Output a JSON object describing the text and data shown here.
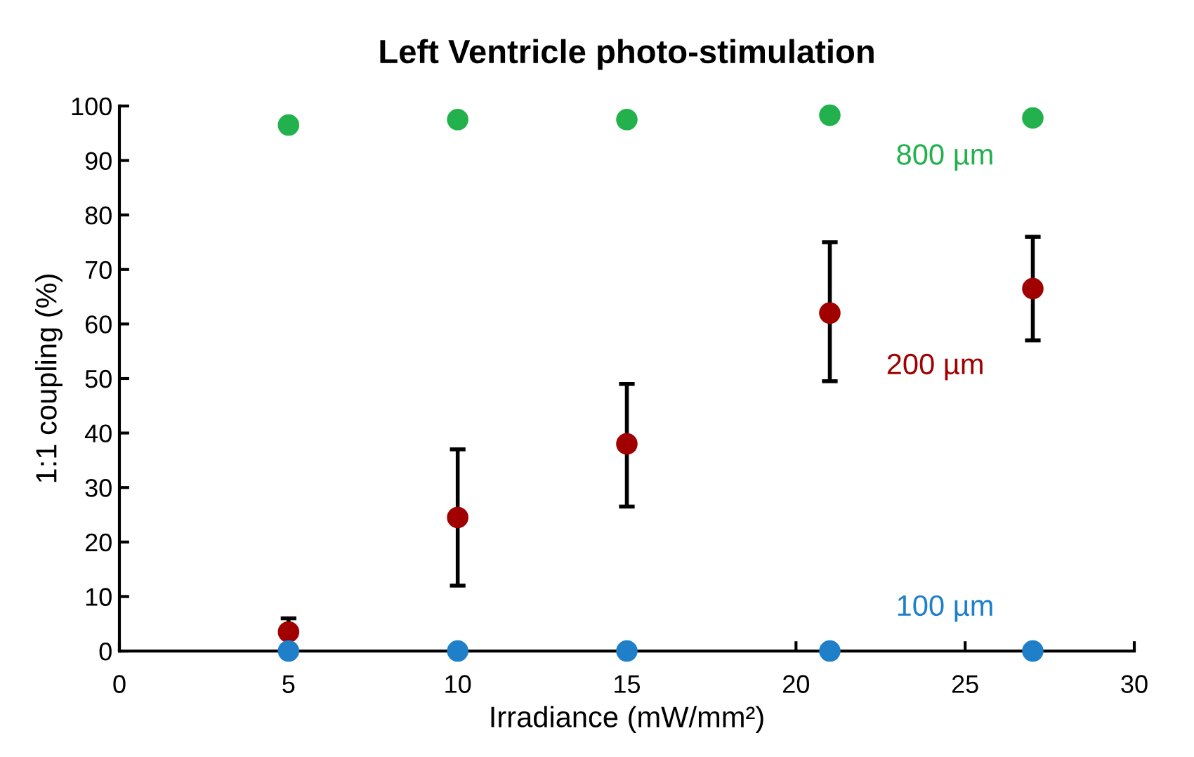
{
  "chart_data": {
    "type": "scatter",
    "title": "Left Ventricle photo-stimulation",
    "xlabel": "Irradiance (mW/mm²)",
    "ylabel": "1:1 coupling (%)",
    "x": [
      5,
      10,
      15,
      21,
      27
    ],
    "series": [
      {
        "name": "800 µm",
        "color": "#22b14c",
        "values": [
          96.5,
          97.5,
          97.5,
          98.3,
          97.8
        ]
      },
      {
        "name": "200 µm",
        "color": "#a00000",
        "values": [
          3.5,
          24.5,
          38,
          62,
          66.5
        ],
        "errors": [
          2.5,
          [
            12,
            37
          ],
          [
            26.5,
            49
          ],
          [
            49.5,
            75
          ],
          [
            57,
            76
          ]
        ]
      },
      {
        "name": "100 µm",
        "color": "#1f7fc8",
        "values": [
          0,
          0,
          0,
          0,
          0
        ]
      }
    ],
    "xlim": [
      0,
      30
    ],
    "xticks": [
      0,
      5,
      10,
      15,
      20,
      25,
      30
    ],
    "ylim": [
      0,
      100
    ],
    "yticks": [
      0,
      10,
      20,
      30,
      40,
      50,
      60,
      70,
      80,
      90,
      100
    ],
    "grid": false,
    "legend": false,
    "marker": "circle"
  }
}
